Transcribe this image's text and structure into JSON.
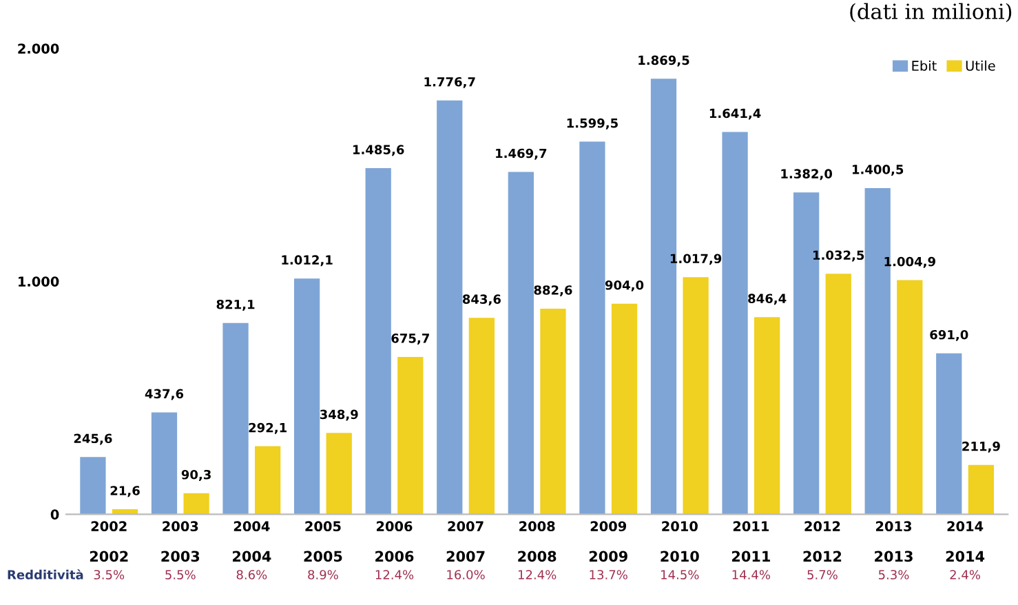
{
  "chart_data": {
    "type": "bar",
    "subtitle": "(dati in milioni)",
    "categories": [
      "2002",
      "2003",
      "2004",
      "2005",
      "2006",
      "2007",
      "2008",
      "2009",
      "2010",
      "2011",
      "2012",
      "2013",
      "2014"
    ],
    "series": [
      {
        "name": "Ebit",
        "color": "#7fa5d6",
        "values": [
          245.6,
          437.6,
          821.1,
          1012.1,
          1485.6,
          1776.7,
          1469.7,
          1599.5,
          1869.5,
          1641.4,
          1382.0,
          1400.5,
          691.0
        ],
        "value_labels": [
          "245,6",
          "437,6",
          "821,1",
          "1.012,1",
          "1.485,6",
          "1.776,7",
          "1.469,7",
          "1.599,5",
          "1.869,5",
          "1.641,4",
          "1.382,0",
          "1.400,5",
          "691,0"
        ]
      },
      {
        "name": "Utile",
        "color": "#f0d020",
        "values": [
          21.6,
          90.3,
          292.1,
          348.9,
          675.7,
          843.6,
          882.6,
          904.0,
          1017.9,
          846.4,
          1032.5,
          1004.9,
          211.9
        ],
        "value_labels": [
          "21,6",
          "90,3",
          "292,1",
          "348,9",
          "675,7",
          "843,6",
          "882,6",
          "904,0",
          "1.017,9",
          "846,4",
          "1.032,5",
          "1.004,9",
          "211,9"
        ]
      }
    ],
    "ylim": [
      0,
      2000
    ],
    "yticks": [
      0,
      {
        "value": 1000,
        "label": "1.000"
      },
      {
        "value": 2000,
        "label": "2.000"
      }
    ],
    "grid": false,
    "legend": "top right",
    "annotations": [
      "Redditività",
      "3.5%",
      "5.5%",
      "8.6%",
      "8.9%",
      "12.4%",
      "16.0%",
      "12.4%",
      "13.7%",
      "14.5%",
      "14.4%",
      "5.7%",
      "5.3%",
      "2.4%"
    ]
  }
}
